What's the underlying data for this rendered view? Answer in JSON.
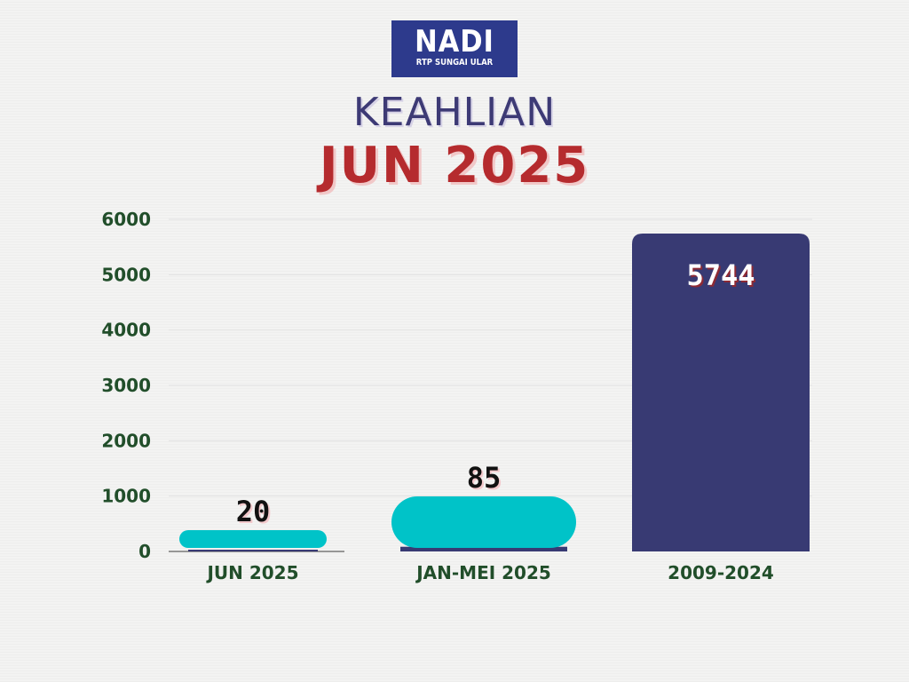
{
  "logo": {
    "main": "NADI",
    "sub": "RTP SUNGAI ULAR"
  },
  "colors": {
    "navy": "#383a73",
    "cyan": "#00c3c8",
    "title": "#3d3a75",
    "red": "#b52b2e",
    "axis_text": "#214e2a"
  },
  "chart_data": {
    "type": "bar",
    "title": "KEAHLIAN",
    "subtitle": "JUN 2025",
    "categories": [
      "JUN 2025",
      "JAN-MEI 2025",
      "2009-2024"
    ],
    "values": [
      20,
      85,
      5744
    ],
    "value_labels": [
      "20",
      "85",
      "5744"
    ],
    "yticks": [
      "0",
      "1000",
      "2000",
      "3000",
      "4000",
      "5000",
      "6000"
    ],
    "ylim": [
      0,
      6000
    ],
    "grid": true,
    "legend": "none"
  }
}
